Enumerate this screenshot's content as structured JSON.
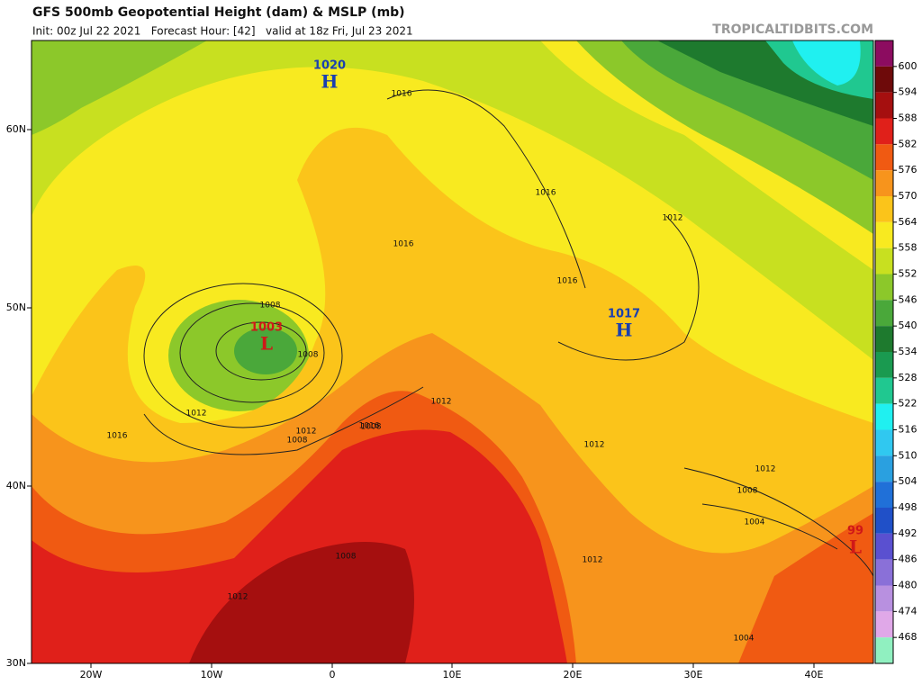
{
  "header": {
    "title": "GFS 500mb Geopotential Height (dam) & MSLP (mb)",
    "subtitle": "Init: 00z Jul 22 2021   Forecast Hour: [42]   valid at 18z Fri, Jul 23 2021",
    "site": "TROPICALTIDBITS.COM"
  },
  "axes": {
    "lat": [
      "60N",
      "50N",
      "40N",
      "30N"
    ],
    "lon": [
      "20W",
      "10W",
      "0",
      "10E",
      "20E",
      "30E",
      "40E"
    ]
  },
  "pressure_centers": [
    {
      "value": "1020",
      "type": "H"
    },
    {
      "value": "1017",
      "type": "H"
    },
    {
      "value": "1003",
      "type": "L"
    },
    {
      "value": "99",
      "type": "L"
    }
  ],
  "isobar_labels": [
    "1016",
    "1016",
    "1016",
    "1012",
    "1016",
    "1016",
    "1008",
    "1008",
    "1012",
    "1016",
    "1012",
    "1008",
    "1008",
    "1012",
    "1012",
    "1012",
    "1008",
    "1004",
    "1012",
    "1004",
    "1012",
    "1008"
  ],
  "colorbar": {
    "levels": [
      600,
      594,
      588,
      582,
      576,
      570,
      564,
      558,
      552,
      546,
      540,
      534,
      528,
      522,
      516,
      510,
      504,
      498,
      492,
      486,
      480,
      474,
      468
    ],
    "colors": [
      "#8c0c60",
      "#6e0a0a",
      "#a50f0f",
      "#e0201a",
      "#f05a12",
      "#f7941c",
      "#fbc41a",
      "#f8ea20",
      "#c8e020",
      "#8cc82a",
      "#4aa83a",
      "#1e7a2e",
      "#1a9a50",
      "#20c890",
      "#20f0f0",
      "#30c8f0",
      "#2aa0e0",
      "#2070d8",
      "#2050c8",
      "#5a50d0",
      "#8a70d8",
      "#b890e0",
      "#e0a8e8",
      "#90f0c0"
    ]
  }
}
